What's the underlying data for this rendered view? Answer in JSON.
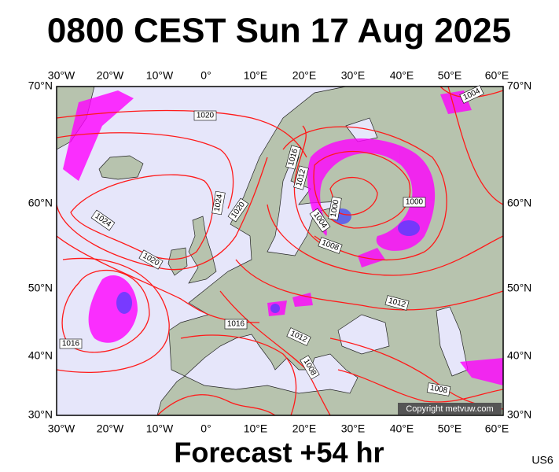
{
  "header": {
    "title": "0800 CEST Sun 17 Aug 2025"
  },
  "map": {
    "lon_labels": [
      "30°W",
      "20°W",
      "10°W",
      "0°",
      "10°E",
      "20°E",
      "30°E",
      "40°E",
      "50°E",
      "60°E"
    ],
    "lat_labels": [
      "70°N",
      "60°N",
      "50°N",
      "40°N",
      "30°N"
    ],
    "isobar_labels": [
      "1020",
      "1024",
      "1020",
      "1024",
      "1020",
      "1016",
      "1012",
      "1016",
      "1004",
      "1000",
      "1000",
      "1008",
      "1012",
      "1012",
      "1008",
      "1016",
      "1008",
      "1004"
    ],
    "copyright": "Copyright metvuw.com"
  },
  "footer": {
    "forecast": "Forecast +54 hr",
    "code": "US6"
  }
}
